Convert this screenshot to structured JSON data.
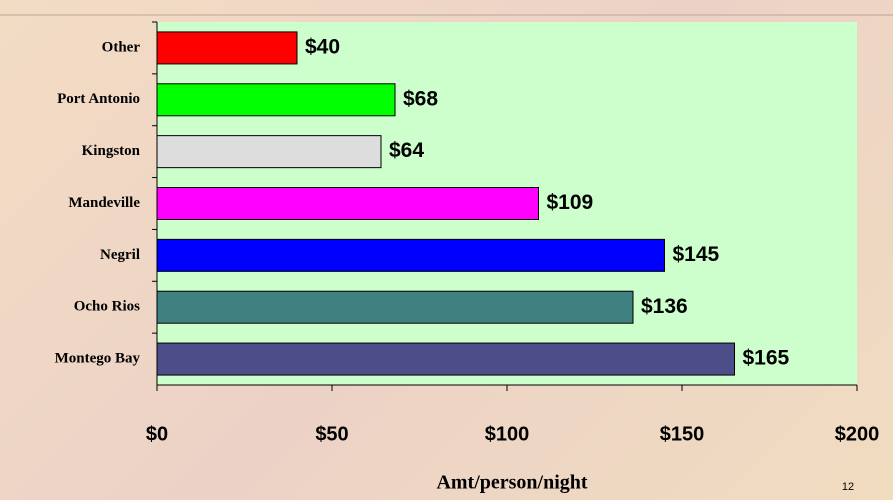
{
  "chart_data": {
    "type": "barh",
    "categories": [
      "Other",
      "Port Antonio",
      "Kingston",
      "Mandeville",
      "Negril",
      "Ocho Rios",
      "Montego Bay"
    ],
    "values": [
      40,
      68,
      64,
      109,
      145,
      136,
      165
    ],
    "value_labels": [
      "$40",
      "$68",
      "$64",
      "$109",
      "$145",
      "$136",
      "$165"
    ],
    "colors": [
      "#ff0000",
      "#00ff00",
      "#dddddd",
      "#ff00ff",
      "#0000ff",
      "#3f8080",
      "#4d4d8a"
    ],
    "x_label": "Amt/person/night",
    "xlim": [
      0,
      200
    ],
    "xticks": [
      {
        "value": 0,
        "label": "$0"
      },
      {
        "value": 50,
        "label": "$50"
      },
      {
        "value": 100,
        "label": "$100"
      },
      {
        "value": 150,
        "label": "$150"
      },
      {
        "value": 200,
        "label": "$200"
      }
    ]
  },
  "page_number": "12"
}
